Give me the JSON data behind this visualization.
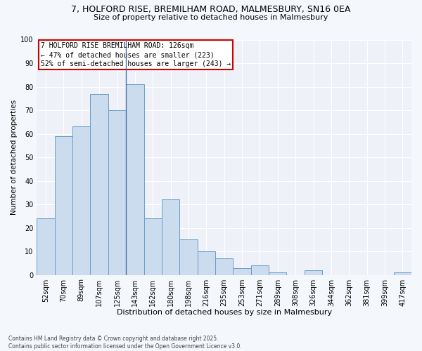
{
  "title_line1": "7, HOLFORD RISE, BREMILHAM ROAD, MALMESBURY, SN16 0EA",
  "title_line2": "Size of property relative to detached houses in Malmesbury",
  "xlabel": "Distribution of detached houses by size in Malmesbury",
  "ylabel": "Number of detached properties",
  "categories": [
    "52sqm",
    "70sqm",
    "89sqm",
    "107sqm",
    "125sqm",
    "143sqm",
    "162sqm",
    "180sqm",
    "198sqm",
    "216sqm",
    "235sqm",
    "253sqm",
    "271sqm",
    "289sqm",
    "308sqm",
    "326sqm",
    "344sqm",
    "362sqm",
    "381sqm",
    "399sqm",
    "417sqm"
  ],
  "values": [
    24,
    59,
    63,
    77,
    70,
    81,
    24,
    32,
    15,
    10,
    7,
    3,
    4,
    1,
    0,
    2,
    0,
    0,
    0,
    0,
    1
  ],
  "bar_facecolor": "#ccdcef",
  "bar_edgecolor": "#6b9dc8",
  "property_line_x": 4.5,
  "property_label": "7 HOLFORD RISE BREMILHAM ROAD: 126sqm",
  "annotation_left": "← 47% of detached houses are smaller (223)",
  "annotation_right": "52% of semi-detached houses are larger (243) →",
  "annotation_box_color": "#ffffff",
  "annotation_box_edgecolor": "#cc0000",
  "vline_color": "#4a6fa5",
  "ylim": [
    0,
    100
  ],
  "yticks": [
    0,
    10,
    20,
    30,
    40,
    50,
    60,
    70,
    80,
    90,
    100
  ],
  "footer_line1": "Contains HM Land Registry data © Crown copyright and database right 2025.",
  "footer_line2": "Contains public sector information licensed under the Open Government Licence v3.0.",
  "bg_color": "#f4f7fb",
  "plot_bg_color": "#eef2f8",
  "grid_color": "#ffffff",
  "title_fontsize": 9,
  "subtitle_fontsize": 8,
  "xlabel_fontsize": 8,
  "ylabel_fontsize": 7.5,
  "tick_fontsize": 7,
  "footer_fontsize": 5.5,
  "annot_fontsize": 7
}
